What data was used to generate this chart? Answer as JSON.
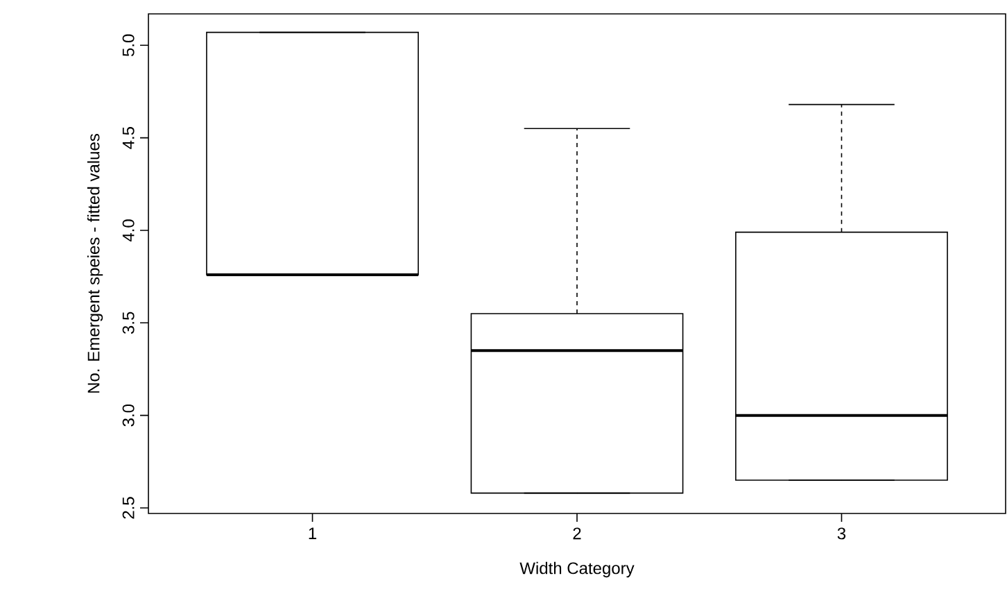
{
  "chart_data": {
    "type": "box",
    "xlabel": "Width Category",
    "ylabel": "No. Emergent speies - fitted values",
    "categories": [
      "1",
      "2",
      "3"
    ],
    "boxes": [
      {
        "low": 3.76,
        "q1": 3.76,
        "median": 3.76,
        "q3": 5.07,
        "high": 5.07
      },
      {
        "low": 2.58,
        "q1": 2.58,
        "median": 3.35,
        "q3": 3.55,
        "high": 4.55
      },
      {
        "low": 2.65,
        "q1": 2.65,
        "median": 3.0,
        "q3": 3.99,
        "high": 4.68
      }
    ],
    "color": "#000000",
    "ylim": [
      2.47,
      5.17
    ],
    "yticks": [
      2.5,
      {
        "value": 3,
        "label": "3.0"
      },
      3.5,
      {
        "value": 4,
        "label": "4.0"
      },
      4.5,
      {
        "value": 5,
        "label": "5.0"
      }
    ],
    "grid": false
  }
}
